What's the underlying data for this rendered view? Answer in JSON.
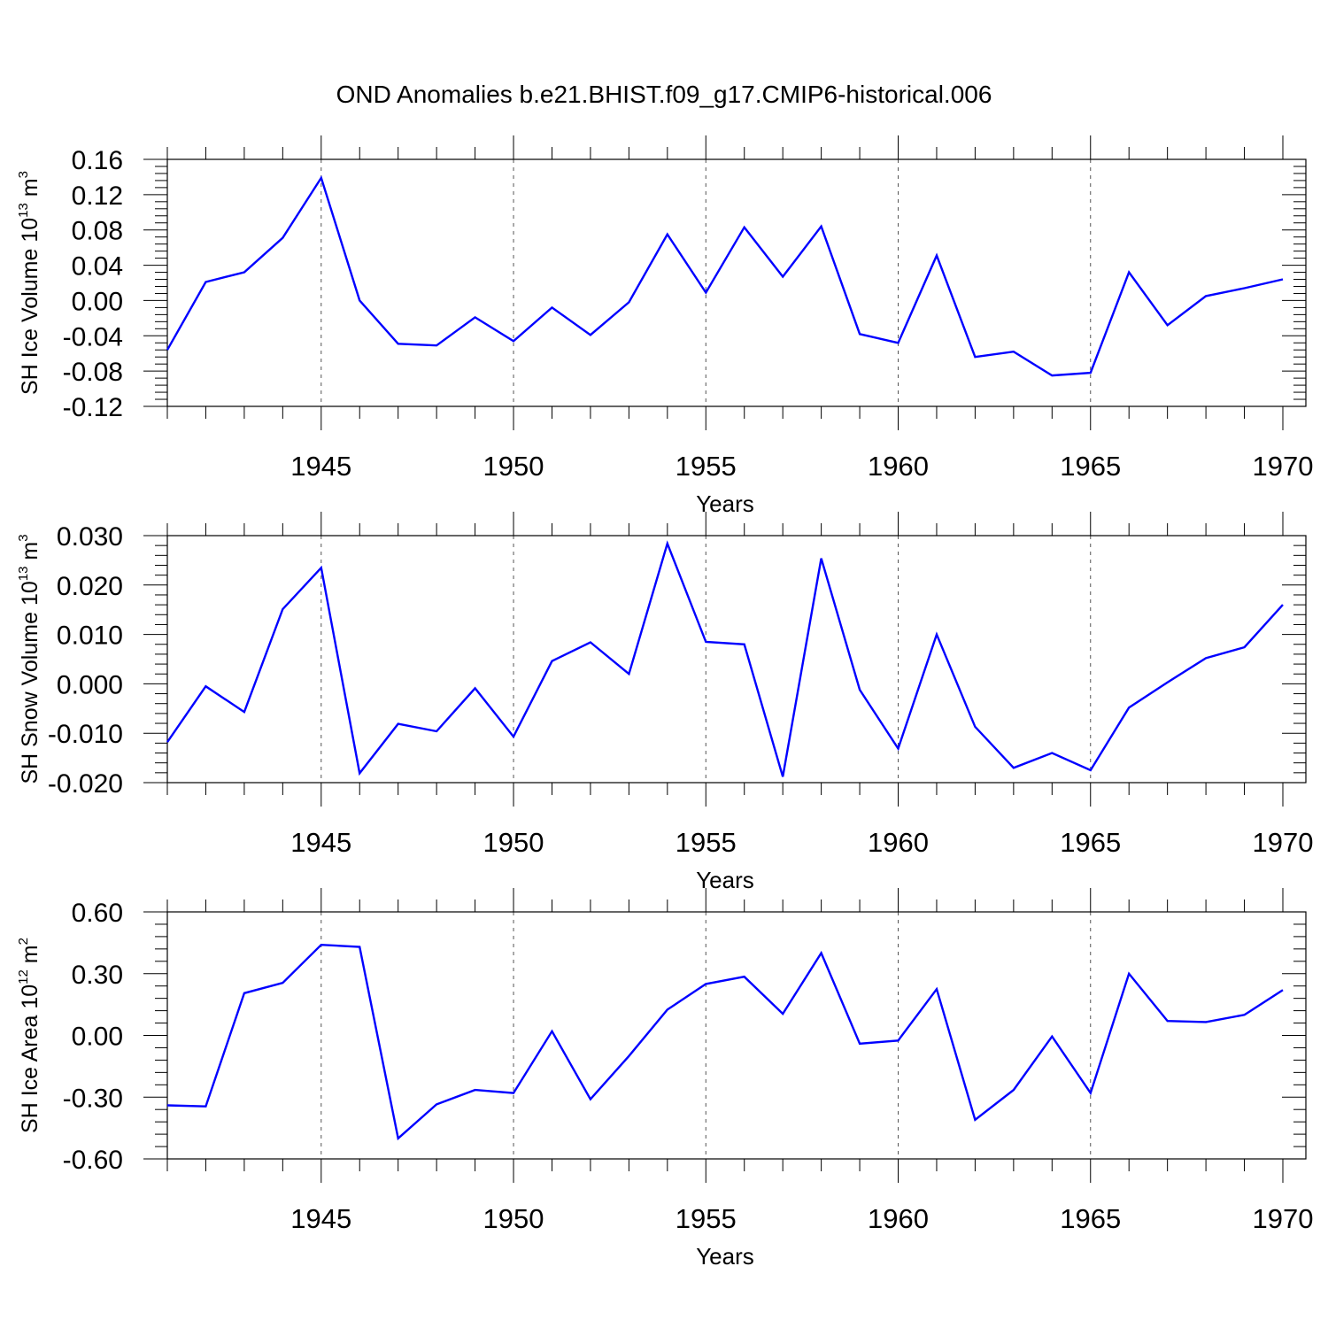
{
  "title": "OND Anomalies b.e21.BHIST.f09_g17.CMIP6-historical.006",
  "line_color": "#0000ff",
  "chart_data": [
    {
      "type": "line",
      "ylabel": {
        "prefix": "SH Ice Volume 10",
        "exp": "13",
        "unit": " m",
        "unit_exp": "3"
      },
      "xlabel": "Years",
      "xlim": [
        1941,
        1970
      ],
      "ylim": [
        -0.12,
        0.16
      ],
      "yticks": [
        "0.16",
        "0.12",
        "0.08",
        "0.04",
        "0.00",
        "-0.04",
        "-0.08",
        "-0.12"
      ],
      "ytick_values": [
        0.16,
        0.12,
        0.08,
        0.04,
        0.0,
        -0.04,
        -0.08,
        -0.12
      ],
      "xticks": [
        "1945",
        "1950",
        "1955",
        "1960",
        "1965",
        "1970"
      ],
      "xtick_values": [
        1945,
        1950,
        1955,
        1960,
        1965,
        1970
      ],
      "x": [
        1941,
        1942,
        1943,
        1944,
        1945,
        1946,
        1947,
        1948,
        1949,
        1950,
        1951,
        1952,
        1953,
        1954,
        1955,
        1956,
        1957,
        1958,
        1959,
        1960,
        1961,
        1962,
        1963,
        1964,
        1965,
        1966,
        1967,
        1968,
        1969,
        1970
      ],
      "values": [
        -0.056,
        0.021,
        0.032,
        0.071,
        0.139,
        0.0,
        -0.049,
        -0.051,
        -0.019,
        -0.046,
        -0.008,
        -0.039,
        -0.002,
        0.075,
        0.009,
        0.083,
        0.027,
        0.084,
        -0.038,
        -0.048,
        0.051,
        -0.064,
        -0.058,
        -0.085,
        -0.082,
        0.032,
        -0.028,
        0.005,
        0.014,
        0.024
      ]
    },
    {
      "type": "line",
      "ylabel": {
        "prefix": "SH Snow Volume 10",
        "exp": "13",
        "unit": " m",
        "unit_exp": "3"
      },
      "xlabel": "Years",
      "xlim": [
        1941,
        1970
      ],
      "ylim": [
        -0.02,
        0.03
      ],
      "yticks": [
        "0.030",
        "0.020",
        "0.010",
        "0.000",
        "-0.010",
        "-0.020"
      ],
      "ytick_values": [
        0.03,
        0.02,
        0.01,
        0.0,
        -0.01,
        -0.02
      ],
      "xticks": [
        "1945",
        "1950",
        "1955",
        "1960",
        "1965",
        "1970"
      ],
      "xtick_values": [
        1945,
        1950,
        1955,
        1960,
        1965,
        1970
      ],
      "x": [
        1941,
        1942,
        1943,
        1944,
        1945,
        1946,
        1947,
        1948,
        1949,
        1950,
        1951,
        1952,
        1953,
        1954,
        1955,
        1956,
        1957,
        1958,
        1959,
        1960,
        1961,
        1962,
        1963,
        1964,
        1965,
        1966,
        1967,
        1968,
        1969,
        1970
      ],
      "values": [
        -0.0118,
        -0.0005,
        -0.0057,
        0.0151,
        0.0235,
        -0.0181,
        -0.0081,
        -0.0096,
        -0.0009,
        -0.0107,
        0.0046,
        0.0084,
        0.002,
        0.0284,
        0.0085,
        0.008,
        -0.0188,
        0.0254,
        -0.0012,
        -0.0131,
        0.01,
        -0.0087,
        -0.017,
        -0.014,
        -0.0175,
        -0.0048,
        0.0003,
        0.0052,
        0.0074,
        0.016
      ]
    },
    {
      "type": "line",
      "ylabel": {
        "prefix": "SH Ice Area 10",
        "exp": "12",
        "unit": " m",
        "unit_exp": "2"
      },
      "xlabel": "Years",
      "xlim": [
        1941,
        1970
      ],
      "ylim": [
        -0.6,
        0.6
      ],
      "yticks": [
        "0.60",
        "0.30",
        "0.00",
        "-0.30",
        "-0.60"
      ],
      "ytick_values": [
        0.6,
        0.3,
        0.0,
        -0.3,
        -0.6
      ],
      "xticks": [
        "1945",
        "1950",
        "1955",
        "1960",
        "1965",
        "1970"
      ],
      "xtick_values": [
        1945,
        1950,
        1955,
        1960,
        1965,
        1970
      ],
      "x": [
        1941,
        1942,
        1943,
        1944,
        1945,
        1946,
        1947,
        1948,
        1949,
        1950,
        1951,
        1952,
        1953,
        1954,
        1955,
        1956,
        1957,
        1958,
        1959,
        1960,
        1961,
        1962,
        1963,
        1964,
        1965,
        1966,
        1967,
        1968,
        1969,
        1970
      ],
      "values": [
        -0.34,
        -0.345,
        0.205,
        0.255,
        0.44,
        0.43,
        -0.5,
        -0.335,
        -0.265,
        -0.28,
        0.02,
        -0.31,
        -0.1,
        0.125,
        0.25,
        0.285,
        0.105,
        0.4,
        -0.04,
        -0.025,
        0.225,
        -0.41,
        -0.265,
        -0.005,
        -0.28,
        0.3,
        0.07,
        0.065,
        0.1,
        0.22
      ]
    }
  ]
}
